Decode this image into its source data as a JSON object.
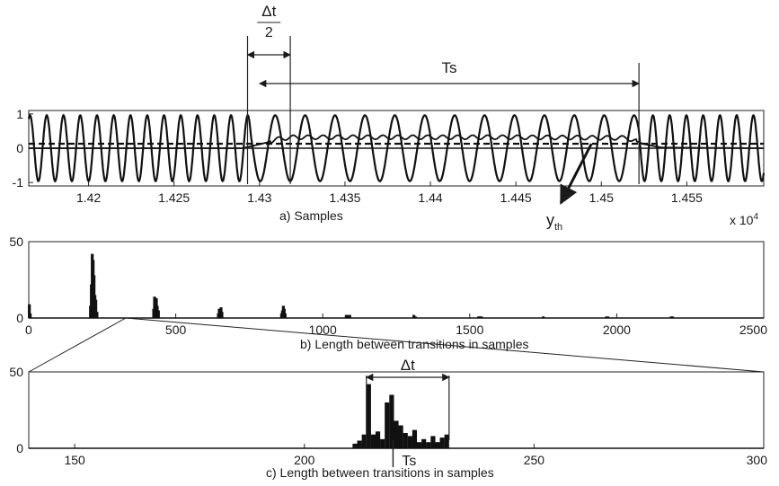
{
  "chart_data": [
    {
      "type": "line",
      "caption": "a) Samples",
      "xlim": [
        1.4165,
        1.4595
      ],
      "ylim": [
        -1.1,
        1.1
      ],
      "xticks": [
        1.42,
        1.425,
        1.43,
        1.435,
        1.44,
        1.445,
        1.45,
        1.455
      ],
      "xtick_labels": [
        "1.42",
        "1.425",
        "1.43",
        "1.435",
        "1.44",
        "1.445",
        "1.45",
        "1.455"
      ],
      "yticks": [
        -1,
        0,
        1
      ],
      "ytick_labels": [
        "-1",
        "0",
        "1"
      ],
      "x_multiplier": "x 10",
      "x_multiplier_exp": "4",
      "series": [
        {
          "period": 0.00135,
          "segments": [
            {
              "x0": 1.4165,
              "x1": 1.4295,
              "period": 0.00098
            },
            {
              "x0": 1.4295,
              "x1": 1.4522,
              "period": 0.00175
            },
            {
              "x0": 1.4522,
              "x1": 1.4595,
              "period": 0.00098
            }
          ],
          "amplitude": 1.0
        },
        {
          "envelope": [
            [
              1.4165,
              0.0
            ],
            [
              1.429,
              0.0
            ],
            [
              1.4303,
              0.15
            ],
            [
              1.4312,
              0.28
            ],
            [
              1.432,
              0.32
            ],
            [
              1.445,
              0.32
            ],
            [
              1.4515,
              0.3
            ],
            [
              1.4525,
              0.12
            ],
            [
              1.4535,
              0.02
            ],
            [
              1.4595,
              0.0
            ]
          ],
          "ripple": 0.06
        }
      ],
      "threshold": {
        "y": 0.13,
        "style": "dashed"
      },
      "annotations": {
        "delta_t_half": {
          "numerator": "Δt",
          "denominator": "2",
          "x0": 1.4293,
          "x1": 1.4318
        },
        "ts": {
          "label": "Ts",
          "x0": 1.43,
          "x1": 1.4522
        },
        "y_threshold": {
          "label": "y",
          "subscript": "th",
          "x_data": 1.449
        }
      }
    },
    {
      "type": "bar",
      "caption": "b) Length between transitions in samples",
      "xlim": [
        0,
        2500
      ],
      "ylim": [
        0,
        50
      ],
      "xticks": [
        0,
        500,
        1000,
        1500,
        2000,
        2500
      ],
      "xtick_labels": [
        "0",
        "500",
        "1000",
        "1500",
        "2000",
        "2500"
      ],
      "yticks": [
        0,
        50
      ],
      "ytick_labels": [
        "0",
        "50"
      ],
      "bars": [
        [
          2,
          9
        ],
        [
          5,
          3
        ],
        [
          210,
          8
        ],
        [
          213,
          22
        ],
        [
          216,
          42
        ],
        [
          219,
          38
        ],
        [
          222,
          28
        ],
        [
          225,
          15
        ],
        [
          228,
          12
        ],
        [
          232,
          4
        ],
        [
          425,
          6
        ],
        [
          428,
          14
        ],
        [
          431,
          12
        ],
        [
          434,
          13
        ],
        [
          437,
          8
        ],
        [
          441,
          5
        ],
        [
          645,
          3
        ],
        [
          648,
          6
        ],
        [
          651,
          5
        ],
        [
          654,
          7
        ],
        [
          657,
          4
        ],
        [
          860,
          3
        ],
        [
          863,
          5
        ],
        [
          866,
          8
        ],
        [
          869,
          6
        ],
        [
          872,
          3
        ],
        [
          1080,
          2
        ],
        [
          1084,
          2
        ],
        [
          1088,
          2
        ],
        [
          1092,
          2
        ],
        [
          1310,
          2
        ],
        [
          1315,
          1
        ],
        [
          1530,
          1
        ],
        [
          1535,
          1
        ],
        [
          1540,
          1
        ],
        [
          1750,
          1
        ],
        [
          1965,
          1
        ],
        [
          1970,
          1
        ],
        [
          2185,
          1
        ],
        [
          2190,
          1
        ]
      ]
    },
    {
      "type": "bar",
      "caption": "c) Length between transitions in samples",
      "xlim": [
        140,
        300
      ],
      "ylim": [
        0,
        50
      ],
      "xticks": [
        150,
        200,
        250,
        300
      ],
      "xtick_labels": [
        "150",
        "200",
        "250",
        "300"
      ],
      "yticks": [
        0,
        50
      ],
      "ytick_labels": [
        "0",
        "50"
      ],
      "bars": [
        [
          211,
          3
        ],
        [
          212,
          5
        ],
        [
          213,
          9
        ],
        [
          214,
          42
        ],
        [
          215,
          9
        ],
        [
          216,
          11
        ],
        [
          217,
          6
        ],
        [
          218,
          30
        ],
        [
          219,
          35
        ],
        [
          220,
          18
        ],
        [
          221,
          15
        ],
        [
          222,
          10
        ],
        [
          223,
          8
        ],
        [
          224,
          12
        ],
        [
          225,
          4
        ],
        [
          226,
          6
        ],
        [
          227,
          4
        ],
        [
          228,
          8
        ],
        [
          229,
          4
        ],
        [
          230,
          7
        ],
        [
          231,
          9
        ]
      ],
      "annotations": {
        "delta_t": {
          "label": "Δt",
          "x0": 213.5,
          "x1": 231.5
        },
        "ts": {
          "label": "Ts",
          "x_data": 219.3
        }
      }
    }
  ]
}
